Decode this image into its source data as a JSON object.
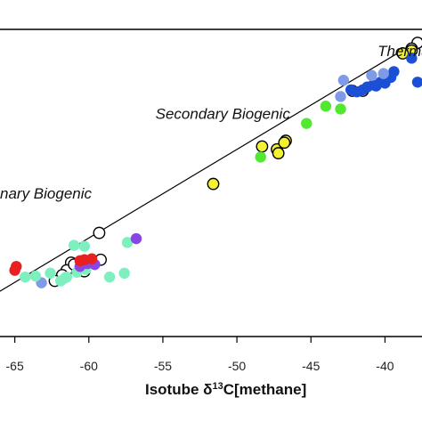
{
  "chart_data": {
    "type": "scatter",
    "title": "",
    "xlabel_parts": [
      "Isotube ",
      "δ",
      "13",
      "C[methane]"
    ],
    "xlim": [
      -66,
      -37.5
    ],
    "ylim": [
      -68,
      -36
    ],
    "x_ticks": [
      -65,
      -60,
      -55,
      -50,
      -45,
      -40
    ],
    "x_tick_labels": [
      "-65",
      "-60",
      "-55",
      "-50",
      "-45",
      "-40"
    ],
    "grid": false,
    "legend": "none",
    "fit_line": {
      "x": [
        -67,
        -37
      ],
      "y": [
        -64.2,
        -36.5
      ]
    },
    "annotations": [
      {
        "text": "Thermal",
        "x": -40.5,
        "y": -38.8
      },
      {
        "text": "Secondary Biogenic",
        "x": -55.5,
        "y": -45.3
      },
      {
        "text": "nary Biogenic",
        "x": -66,
        "y": -53.6
      }
    ],
    "series": [
      {
        "fill": "#ffffff",
        "stroke": "#000000",
        "points": [
          [
            -37.8,
            -37.4
          ],
          [
            -38.2,
            -38.0
          ],
          [
            -39.8,
            -41.0
          ],
          [
            -41.5,
            -42.4
          ],
          [
            -42.2,
            -42.4
          ],
          [
            -59.3,
            -57.2
          ],
          [
            -59.2,
            -60.0
          ],
          [
            -60.0,
            -60.2
          ],
          [
            -60.8,
            -60.4
          ],
          [
            -61.2,
            -60.3
          ],
          [
            -61.5,
            -61.1
          ],
          [
            -61.0,
            -60.5
          ],
          [
            -60.3,
            -61.2
          ],
          [
            -61.8,
            -61.6
          ],
          [
            -62.3,
            -62.2
          ]
        ]
      },
      {
        "fill": "#f2f231",
        "stroke": "#000000",
        "points": [
          [
            -51.6,
            -52.1
          ],
          [
            -48.3,
            -48.2
          ],
          [
            -47.3,
            -48.5
          ],
          [
            -47.2,
            -48.9
          ],
          [
            -46.7,
            -47.6
          ],
          [
            -46.8,
            -47.8
          ],
          [
            -38.2,
            -38.2
          ],
          [
            -38.8,
            -38.5
          ]
        ]
      },
      {
        "fill": "#1a4fd6",
        "stroke": "none",
        "points": [
          [
            -41.2,
            -42.0
          ],
          [
            -40.8,
            -41.8
          ],
          [
            -40.3,
            -41.5
          ],
          [
            -40.0,
            -41.3
          ],
          [
            -39.6,
            -41.0
          ],
          [
            -41.5,
            -42.3
          ],
          [
            -40.6,
            -41.9
          ],
          [
            -39.4,
            -40.4
          ],
          [
            -37.8,
            -41.5
          ],
          [
            -41.9,
            -42.5
          ],
          [
            -42.3,
            -42.3
          ],
          [
            -40.0,
            -41.6
          ],
          [
            -38.2,
            -39.0
          ]
        ]
      },
      {
        "fill": "#7f9be8",
        "stroke": "none",
        "points": [
          [
            -42.8,
            -41.3
          ],
          [
            -43.0,
            -43.0
          ],
          [
            -40.9,
            -40.8
          ],
          [
            -40.1,
            -40.6
          ],
          [
            -63.2,
            -62.4
          ]
        ]
      },
      {
        "fill": "#52e830",
        "stroke": "none",
        "points": [
          [
            -45.3,
            -45.8
          ],
          [
            -44.0,
            -44.0
          ],
          [
            -48.4,
            -49.3
          ],
          [
            -43.0,
            -44.3
          ]
        ]
      },
      {
        "fill": "#7ef0c0",
        "stroke": "none",
        "points": [
          [
            -61.0,
            -58.5
          ],
          [
            -60.3,
            -58.6
          ],
          [
            -57.4,
            -58.2
          ],
          [
            -58.6,
            -61.8
          ],
          [
            -57.6,
            -61.4
          ],
          [
            -62.6,
            -61.4
          ],
          [
            -63.6,
            -61.7
          ],
          [
            -64.3,
            -61.8
          ],
          [
            -61.9,
            -62.2
          ],
          [
            -61.5,
            -61.8
          ],
          [
            -60.8,
            -61.3
          ],
          [
            -60.3,
            -60.7
          ],
          [
            -60.2,
            -61.0
          ],
          [
            -61.6,
            -61.9
          ]
        ]
      },
      {
        "fill": "#8b45e6",
        "stroke": "none",
        "points": [
          [
            -56.8,
            -57.8
          ],
          [
            -60.1,
            -60.4
          ],
          [
            -59.6,
            -60.5
          ],
          [
            -60.6,
            -60.7
          ]
        ]
      },
      {
        "fill": "#e82020",
        "stroke": "none",
        "points": [
          [
            -64.9,
            -60.7
          ],
          [
            -65.0,
            -61.1
          ],
          [
            -60.3,
            -60.0
          ],
          [
            -59.8,
            -59.9
          ],
          [
            -60.6,
            -60.1
          ]
        ]
      }
    ]
  }
}
